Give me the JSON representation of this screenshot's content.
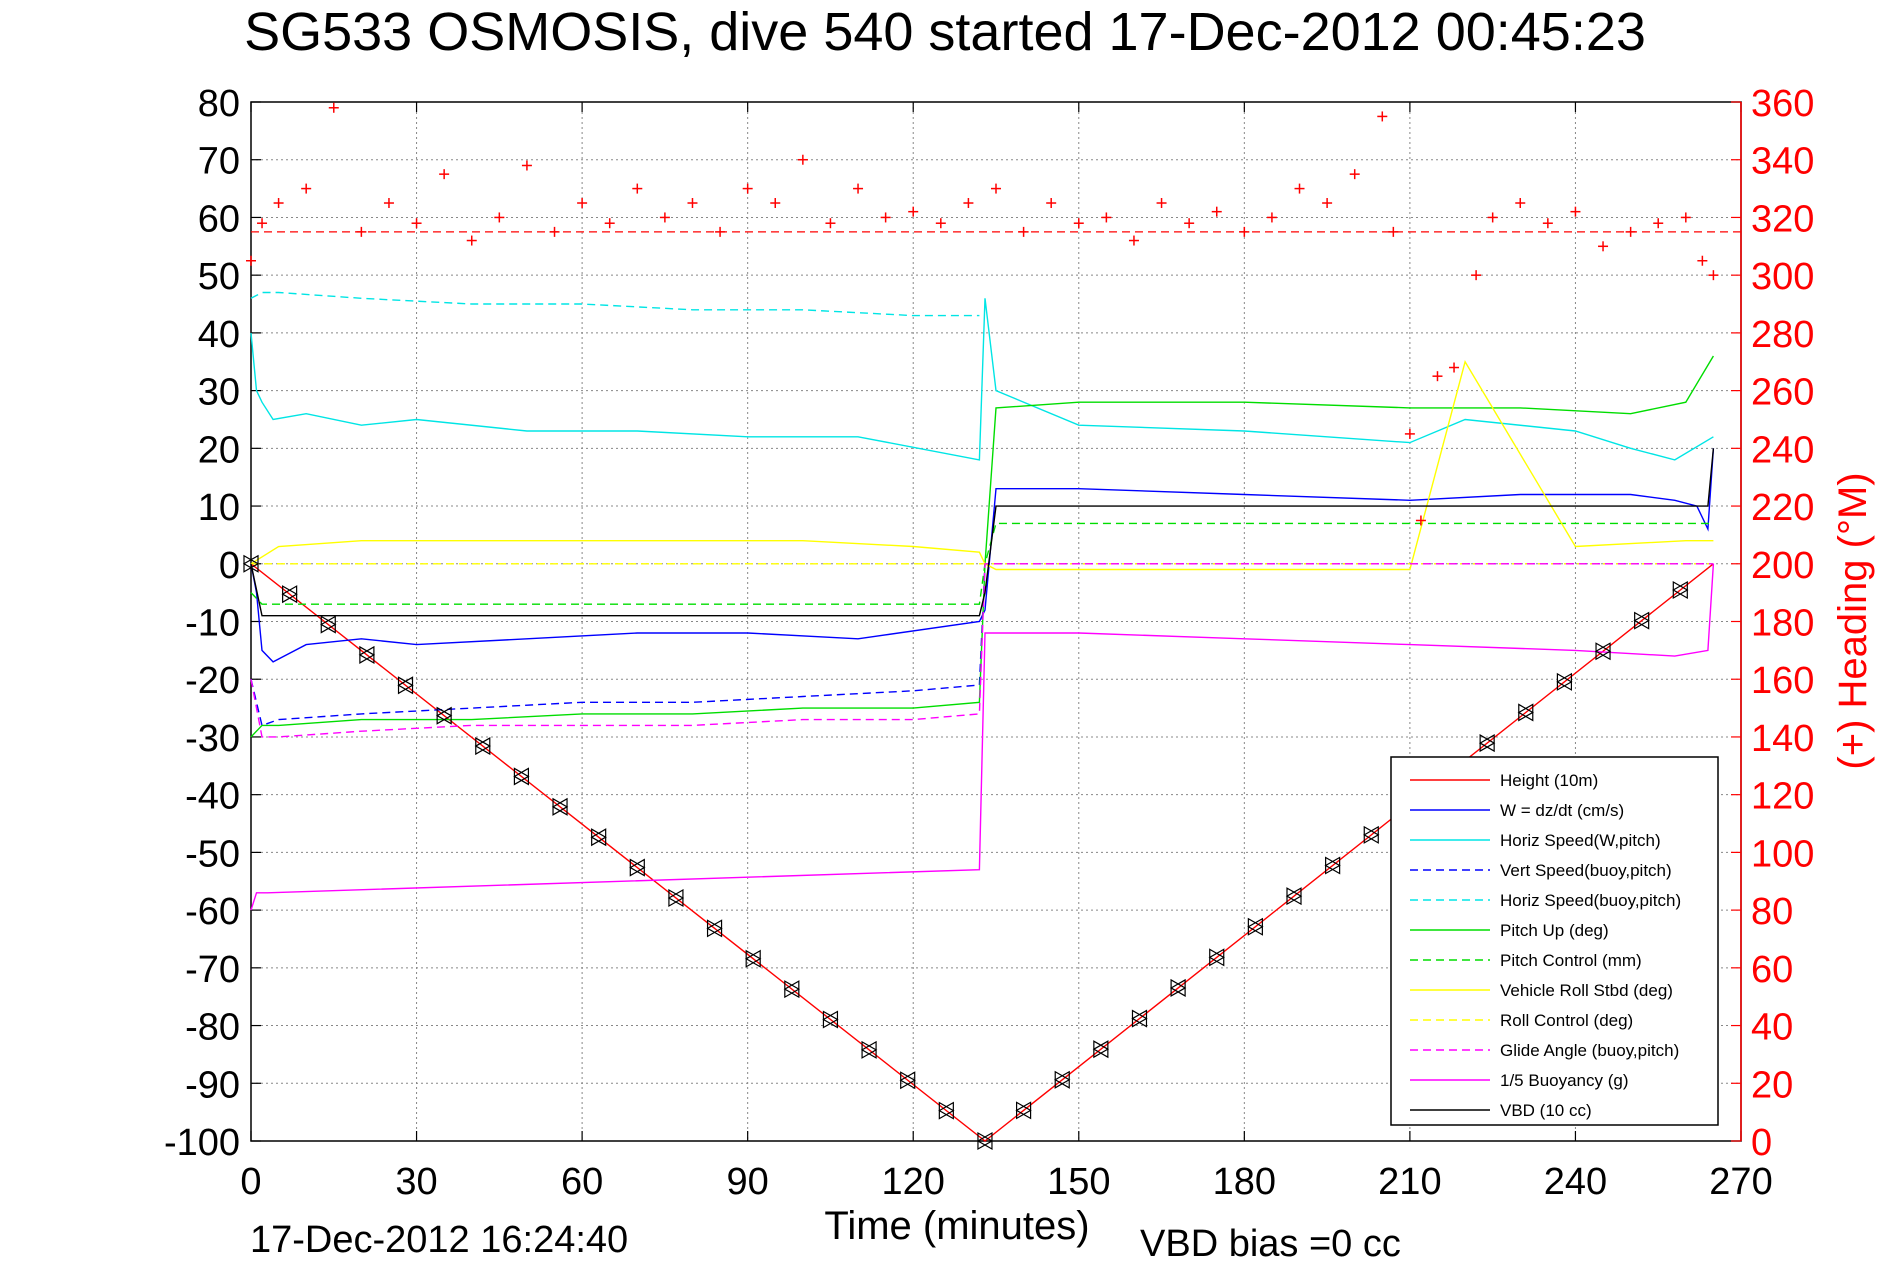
{
  "chart_data": {
    "type": "line",
    "title": "SG533 OSMOSIS, dive 540 started 17-Dec-2012 00:45:23",
    "xlabel": "Time (minutes)",
    "ylabel": "",
    "y2label": "(+) Heading (°M)",
    "xlim": [
      0,
      270
    ],
    "ylim": [
      -100,
      80
    ],
    "y2lim": [
      0,
      360
    ],
    "xticks": [
      "0",
      "30",
      "60",
      "90",
      "120",
      "150",
      "180",
      "210",
      "240",
      "270"
    ],
    "yticks": [
      "80",
      "70",
      "60",
      "50",
      "40",
      "30",
      "20",
      "10",
      "0",
      "-10",
      "-20",
      "-30",
      "-40",
      "-50",
      "-60",
      "-70",
      "-80",
      "-90",
      "-100"
    ],
    "y2ticks": [
      "360",
      "340",
      "320",
      "300",
      "280",
      "260",
      "240",
      "220",
      "200",
      "180",
      "160",
      "140",
      "120",
      "100",
      "80",
      "60",
      "40",
      "20",
      "0"
    ],
    "grid": true,
    "legend_position": "bottom-right",
    "footer_date": "17-Dec-2012 16:24:40",
    "footer_bias": "VBD bias =0 cc",
    "heading_reference": 315,
    "series": [
      {
        "name": "Height (10m)",
        "color": "#ff0000",
        "style": "solid",
        "x": [
          0,
          133,
          265
        ],
        "y": [
          0,
          -100,
          0
        ]
      },
      {
        "name": "W = dz/dt (cm/s)",
        "color": "#0000ff",
        "style": "solid",
        "x": [
          0,
          1,
          2,
          4,
          10,
          20,
          30,
          50,
          70,
          90,
          110,
          132,
          133,
          135,
          150,
          180,
          210,
          230,
          250,
          258,
          262,
          264,
          265
        ],
        "y": [
          0,
          -5,
          -15,
          -17,
          -14,
          -13,
          -14,
          -13,
          -12,
          -12,
          -13,
          -10,
          -8,
          13,
          13,
          12,
          11,
          12,
          12,
          11,
          10,
          6,
          20
        ]
      },
      {
        "name": "Horiz Speed(W,pitch)",
        "color": "#00e5e5",
        "style": "solid",
        "x": [
          0,
          1,
          2,
          4,
          10,
          20,
          30,
          50,
          70,
          90,
          110,
          132,
          133,
          135,
          150,
          180,
          210,
          220,
          240,
          250,
          258,
          265
        ],
        "y": [
          40,
          30,
          28,
          25,
          26,
          24,
          25,
          23,
          23,
          22,
          22,
          18,
          46,
          30,
          24,
          23,
          21,
          25,
          23,
          20,
          18,
          22
        ]
      },
      {
        "name": "Vert Speed(buoy,pitch)",
        "color": "#0000ff",
        "style": "dashed",
        "x": [
          0,
          2,
          5,
          20,
          40,
          60,
          80,
          100,
          120,
          132,
          133,
          135,
          265
        ],
        "y": [
          -20,
          -28,
          -27,
          -26,
          -25,
          -24,
          -24,
          -23,
          -22,
          -21,
          0,
          0,
          0
        ]
      },
      {
        "name": "Horiz Speed(buoy,pitch)",
        "color": "#00e5e5",
        "style": "dashed",
        "x": [
          0,
          2,
          5,
          20,
          40,
          60,
          80,
          100,
          120,
          132
        ],
        "y": [
          46,
          47,
          47,
          46,
          45,
          45,
          44,
          44,
          43,
          43
        ]
      },
      {
        "name": "Pitch Up (deg)",
        "color": "#00dd00",
        "style": "solid",
        "x": [
          0,
          2,
          5,
          20,
          40,
          60,
          80,
          100,
          120,
          132,
          133,
          135,
          150,
          180,
          210,
          230,
          250,
          260,
          265
        ],
        "y": [
          -30,
          -28,
          -28,
          -27,
          -27,
          -26,
          -26,
          -25,
          -25,
          -24,
          0,
          27,
          28,
          28,
          27,
          27,
          26,
          28,
          36
        ]
      },
      {
        "name": "Pitch Control (mm)",
        "color": "#00dd00",
        "style": "dashed",
        "x": [
          0,
          2,
          132,
          133,
          135,
          265
        ],
        "y": [
          -5,
          -7,
          -7,
          0,
          7,
          7
        ]
      },
      {
        "name": "Vehicle Roll Stbd (deg)",
        "color": "#ffff00",
        "style": "solid",
        "x": [
          0,
          5,
          20,
          40,
          60,
          80,
          100,
          120,
          132,
          133,
          135,
          150,
          180,
          210,
          220,
          240,
          260,
          265
        ],
        "y": [
          0,
          3,
          4,
          4,
          4,
          4,
          4,
          3,
          2,
          0,
          -1,
          -1,
          -1,
          -1,
          35,
          3,
          4,
          4
        ]
      },
      {
        "name": "Roll Control (deg)",
        "color": "#ffff00",
        "style": "dashed",
        "x": [
          0,
          133,
          135,
          265
        ],
        "y": [
          0,
          0,
          0,
          0
        ]
      },
      {
        "name": "Glide Angle (buoy,pitch)",
        "color": "#ff00ff",
        "style": "dashed",
        "x": [
          0,
          2,
          5,
          20,
          40,
          60,
          80,
          100,
          120,
          132,
          133,
          135,
          265
        ],
        "y": [
          -20,
          -30,
          -30,
          -29,
          -28,
          -28,
          -28,
          -27,
          -27,
          -26,
          0,
          0,
          0
        ]
      },
      {
        "name": "1/5 Buoyancy (g)",
        "color": "#ff00ff",
        "style": "solid",
        "x": [
          0,
          1,
          2,
          3,
          132,
          133,
          135,
          150,
          180,
          210,
          240,
          258,
          264,
          265
        ],
        "y": [
          -60,
          -57,
          -57,
          -57,
          -53,
          -12,
          -12,
          -12,
          -13,
          -14,
          -15,
          -16,
          -15,
          0
        ]
      },
      {
        "name": "VBD (10 cc)",
        "color": "#000000",
        "style": "solid",
        "x": [
          0,
          2,
          3,
          132,
          133,
          135,
          250,
          258,
          264,
          265
        ],
        "y": [
          0,
          -9,
          -9,
          -9,
          -5,
          10,
          10,
          10,
          10,
          20
        ]
      }
    ],
    "heading_series": {
      "name": "Heading",
      "color": "#ff0000",
      "marker": "+",
      "axis": "right",
      "x": [
        0,
        2,
        5,
        10,
        15,
        20,
        25,
        30,
        35,
        40,
        45,
        50,
        55,
        60,
        65,
        70,
        75,
        80,
        85,
        90,
        95,
        100,
        105,
        110,
        115,
        120,
        125,
        130,
        135,
        140,
        145,
        150,
        155,
        160,
        165,
        170,
        175,
        180,
        185,
        190,
        195,
        200,
        205,
        207,
        210,
        212,
        215,
        218,
        222,
        225,
        230,
        235,
        240,
        245,
        250,
        255,
        260,
        263,
        265
      ],
      "y": [
        305,
        318,
        325,
        330,
        358,
        315,
        325,
        318,
        335,
        312,
        320,
        338,
        315,
        325,
        318,
        330,
        320,
        325,
        315,
        330,
        325,
        340,
        318,
        330,
        320,
        322,
        318,
        325,
        330,
        315,
        325,
        318,
        320,
        312,
        325,
        318,
        322,
        315,
        320,
        330,
        325,
        335,
        355,
        315,
        245,
        215,
        265,
        268,
        300,
        320,
        325,
        318,
        322,
        310,
        315,
        318,
        320,
        305,
        300
      ]
    }
  }
}
